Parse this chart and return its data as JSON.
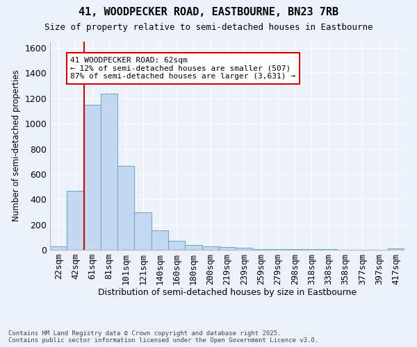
{
  "title1": "41, WOODPECKER ROAD, EASTBOURNE, BN23 7RB",
  "title2": "Size of property relative to semi-detached houses in Eastbourne",
  "xlabel": "Distribution of semi-detached houses by size in Eastbourne",
  "ylabel": "Number of semi-detached properties",
  "footnote1": "Contains HM Land Registry data © Crown copyright and database right 2025.",
  "footnote2": "Contains public sector information licensed under the Open Government Licence v3.0.",
  "categories": [
    "22sqm",
    "42sqm",
    "61sqm",
    "81sqm",
    "101sqm",
    "121sqm",
    "140sqm",
    "160sqm",
    "180sqm",
    "200sqm",
    "219sqm",
    "239sqm",
    "259sqm",
    "279sqm",
    "298sqm",
    "318sqm",
    "338sqm",
    "358sqm",
    "377sqm",
    "397sqm",
    "417sqm"
  ],
  "values": [
    25,
    470,
    1150,
    1240,
    665,
    295,
    155,
    70,
    38,
    28,
    20,
    15,
    8,
    7,
    5,
    4,
    3,
    2,
    2,
    2,
    10
  ],
  "bar_color": "#c5d8f0",
  "bar_edge_color": "#6aaad4",
  "property_label": "41 WOODPECKER ROAD: 62sqm",
  "pct_smaller": 12,
  "pct_larger": 87,
  "count_smaller": 507,
  "count_larger": 3631,
  "vline_color": "#cc0000",
  "annotation_box_color": "#cc0000",
  "ylim": [
    0,
    1650
  ],
  "yticks": [
    0,
    200,
    400,
    600,
    800,
    1000,
    1200,
    1400,
    1600
  ],
  "bg_color": "#edf1f9",
  "grid_color": "#ffffff",
  "vline_bin_index": 2
}
